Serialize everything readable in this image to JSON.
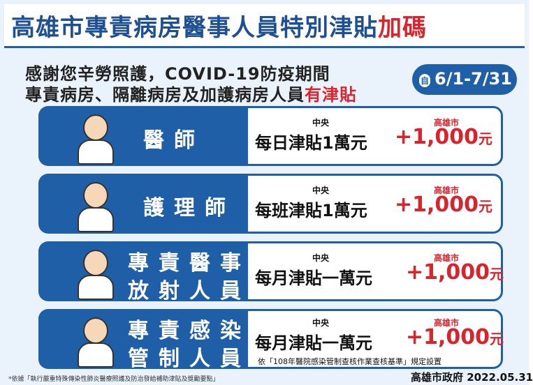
{
  "header": {
    "title": "高雄市專責病房醫事人員特別津貼",
    "title_highlight": "加碼",
    "subtitle_line1": "感謝您辛勞照護，COVID-19防疫期間",
    "subtitle_line2": "專責病房、隔離病房及加護病房人員",
    "subtitle_highlight": "有津貼",
    "badge_prefix": "自",
    "badge_date": "6/1-7/31"
  },
  "rows": [
    {
      "role": [
        "醫師"
      ],
      "central_label": "中央",
      "allowance": "每日津貼1萬元",
      "city_label": "高雄市",
      "amount": "+1,000",
      "unit": "元"
    },
    {
      "role": [
        "護理師"
      ],
      "central_label": "中央",
      "allowance": "每班津貼1萬元",
      "city_label": "高雄市",
      "amount": "+1,000",
      "unit": "元"
    },
    {
      "role": [
        "專責醫事",
        "放射人員"
      ],
      "central_label": "中央",
      "allowance": "每月津貼一萬元",
      "city_label": "高雄市",
      "amount": "+1,000",
      "unit": "元"
    },
    {
      "role": [
        "專責感染",
        "管制人員"
      ],
      "central_label": "中央",
      "allowance": "每月津貼一萬元",
      "city_label": "高雄市",
      "amount": "+1,000",
      "unit": "元",
      "note": "依「108年醫院感染管制查核作業查核基準」規定設置"
    }
  ],
  "footer": {
    "note": "*依據「執行嚴重特殊傳染性肺炎醫療照護及防治發給補助津貼及獎勵要點」",
    "logo": "高雄市政府 2022.05.31"
  }
}
